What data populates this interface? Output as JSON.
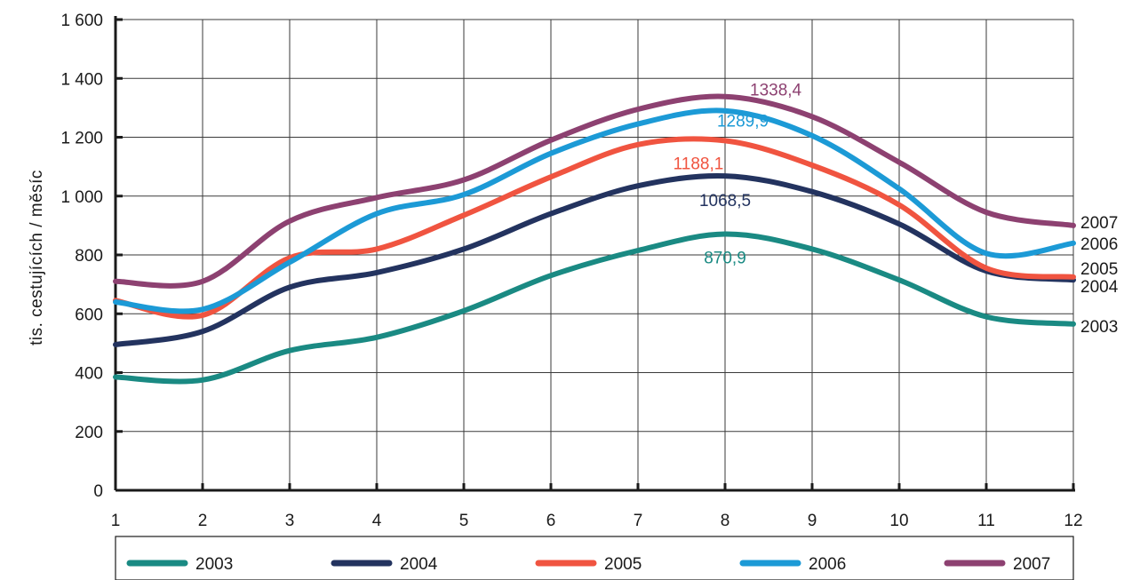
{
  "chart_data": {
    "type": "line",
    "title": "",
    "xlabel": "",
    "ylabel": "tis. cestujících / měsíc",
    "x": [
      1,
      2,
      3,
      4,
      5,
      6,
      7,
      8,
      9,
      10,
      11,
      12
    ],
    "x_tick_labels": [
      "1",
      "2",
      "3",
      "4",
      "5",
      "6",
      "7",
      "8",
      "9",
      "10",
      "11",
      "12"
    ],
    "y_tick_labels": [
      "0",
      "200",
      "400",
      "600",
      "800",
      "1 000",
      "1 200",
      "1 400",
      "1 600"
    ],
    "y_ticks": [
      0,
      200,
      400,
      600,
      800,
      1000,
      1200,
      1400,
      1600
    ],
    "xlim": [
      1,
      12
    ],
    "ylim": [
      0,
      1600
    ],
    "grid": true,
    "legend_position": "bottom",
    "series": [
      {
        "name": "2003",
        "color": "#1a8a83",
        "values": [
          385,
          375,
          475,
          520,
          610,
          730,
          815,
          870.9,
          820,
          715,
          590,
          565
        ]
      },
      {
        "name": "2004",
        "color": "#23335f",
        "values": [
          495,
          540,
          690,
          740,
          820,
          940,
          1035,
          1068.5,
          1015,
          905,
          745,
          715
        ]
      },
      {
        "name": "2005",
        "color": "#f05440",
        "values": [
          645,
          595,
          790,
          820,
          935,
          1065,
          1175,
          1188.1,
          1105,
          970,
          755,
          725
        ]
      },
      {
        "name": "2006",
        "color": "#1c9ad6",
        "values": [
          640,
          615,
          775,
          940,
          1005,
          1145,
          1245,
          1289.9,
          1205,
          1025,
          805,
          840
        ]
      },
      {
        "name": "2007",
        "color": "#8d4171",
        "values": [
          710,
          710,
          915,
          995,
          1055,
          1190,
          1295,
          1338.4,
          1270,
          1115,
          945,
          900
        ]
      }
    ],
    "annotations": [
      {
        "series": "2003",
        "x": 8,
        "text": "870,9"
      },
      {
        "series": "2004",
        "x": 8,
        "text": "1068,5"
      },
      {
        "series": "2005",
        "x": 8,
        "text": "1188,1"
      },
      {
        "series": "2006",
        "x": 8,
        "text": "1289,9"
      },
      {
        "series": "2007",
        "x": 8,
        "text": "1338,4"
      }
    ],
    "end_labels": [
      "2007",
      "2006",
      "2005",
      "2004",
      "2003"
    ]
  }
}
